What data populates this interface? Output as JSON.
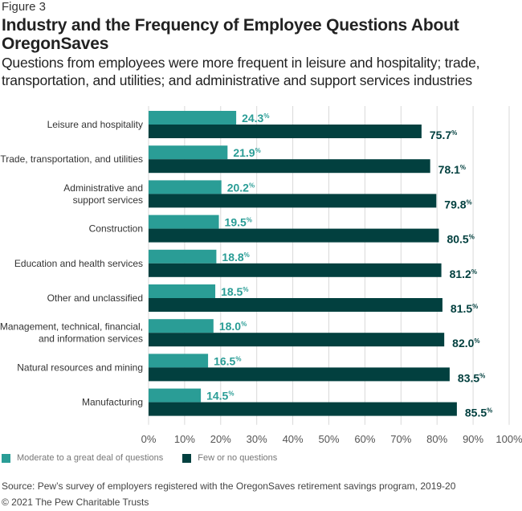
{
  "figure_label": "Figure 3",
  "title": "Industry and the Frequency of Employee Questions About OregonSaves",
  "subtitle": "Questions from employees were more frequent in leisure and hospitality; trade, transportation, and utilities; and administrative and support services industries",
  "source": "Source: Pew’s survey of employers registered with the OregonSaves retirement savings program, 2019-20",
  "copyright": "© 2021 The Pew Charitable Trusts",
  "colors": {
    "moderate": "#2a9d96",
    "few": "#02403f",
    "grid": "#d9d9d9",
    "axis_text": "#555555"
  },
  "chart_data": {
    "type": "bar",
    "orientation": "horizontal",
    "title": "Industry and the Frequency of Employee Questions About OregonSaves",
    "xlabel": "",
    "ylabel": "",
    "xlim": [
      0,
      100
    ],
    "grid": true,
    "legend_position": "bottom-left",
    "categories": [
      [
        "Leisure and hospitality"
      ],
      [
        "Trade, transportation, and utilities"
      ],
      [
        "Administrative and",
        "support services"
      ],
      [
        "Construction"
      ],
      [
        "Education and health services"
      ],
      [
        "Other and unclassified"
      ],
      [
        "Management, technical, financial,",
        "and information services"
      ],
      [
        "Natural resources and mining"
      ],
      [
        "Manufacturing"
      ]
    ],
    "series": [
      {
        "name": "Moderate to a great deal of questions",
        "values": [
          24.3,
          21.9,
          20.2,
          19.5,
          18.8,
          18.5,
          18.0,
          16.5,
          14.5
        ]
      },
      {
        "name": "Few or no questions",
        "values": [
          75.7,
          78.1,
          79.8,
          80.5,
          81.2,
          81.5,
          82.0,
          83.5,
          85.5
        ]
      }
    ],
    "x_ticks": [
      "0%",
      "10%",
      "20%",
      "30%",
      "40%",
      "50%",
      "60%",
      "70%",
      "80%",
      "90%",
      "100%"
    ],
    "x_tick_values": [
      0,
      10,
      20,
      30,
      40,
      50,
      60,
      70,
      80,
      90,
      100
    ],
    "value_suffix": "%"
  }
}
